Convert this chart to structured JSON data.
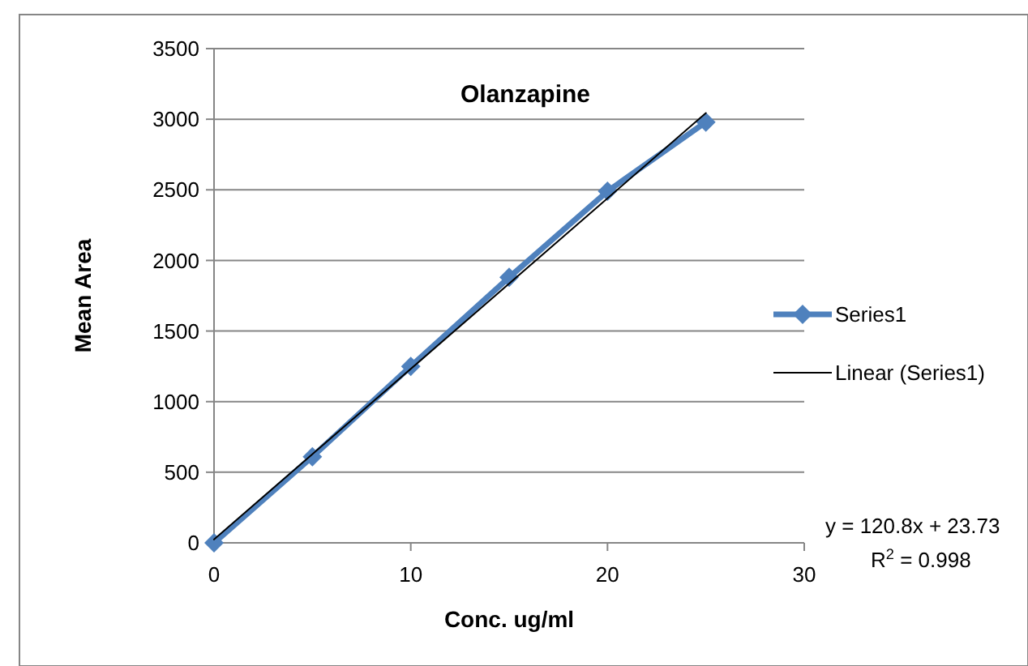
{
  "chart_data": {
    "type": "line",
    "title": "Olanzapine",
    "xlabel": "Conc. ug/ml",
    "ylabel": "Mean Area",
    "xlim": [
      0,
      30
    ],
    "xticks": [
      0,
      10,
      20,
      30
    ],
    "ylim": [
      0,
      3500
    ],
    "yticks": [
      0,
      500,
      1000,
      1500,
      2000,
      2500,
      3000,
      3500
    ],
    "grid": "y",
    "legend": "right",
    "marker": "diamond",
    "series": [
      {
        "name": "Series1",
        "color": "#4f81bd",
        "x": [
          0,
          5,
          10,
          15,
          20,
          25
        ],
        "values": [
          0,
          610,
          1250,
          1880,
          2490,
          2980
        ]
      },
      {
        "name": "Linear (Series1)",
        "color": "#000000",
        "type": "line",
        "marker": "none",
        "x": [
          0,
          25
        ],
        "values": [
          24,
          3044
        ]
      }
    ],
    "annotations": [
      "y = 120.8x + 23.73",
      "R$^{2}$ = 0.998"
    ]
  }
}
